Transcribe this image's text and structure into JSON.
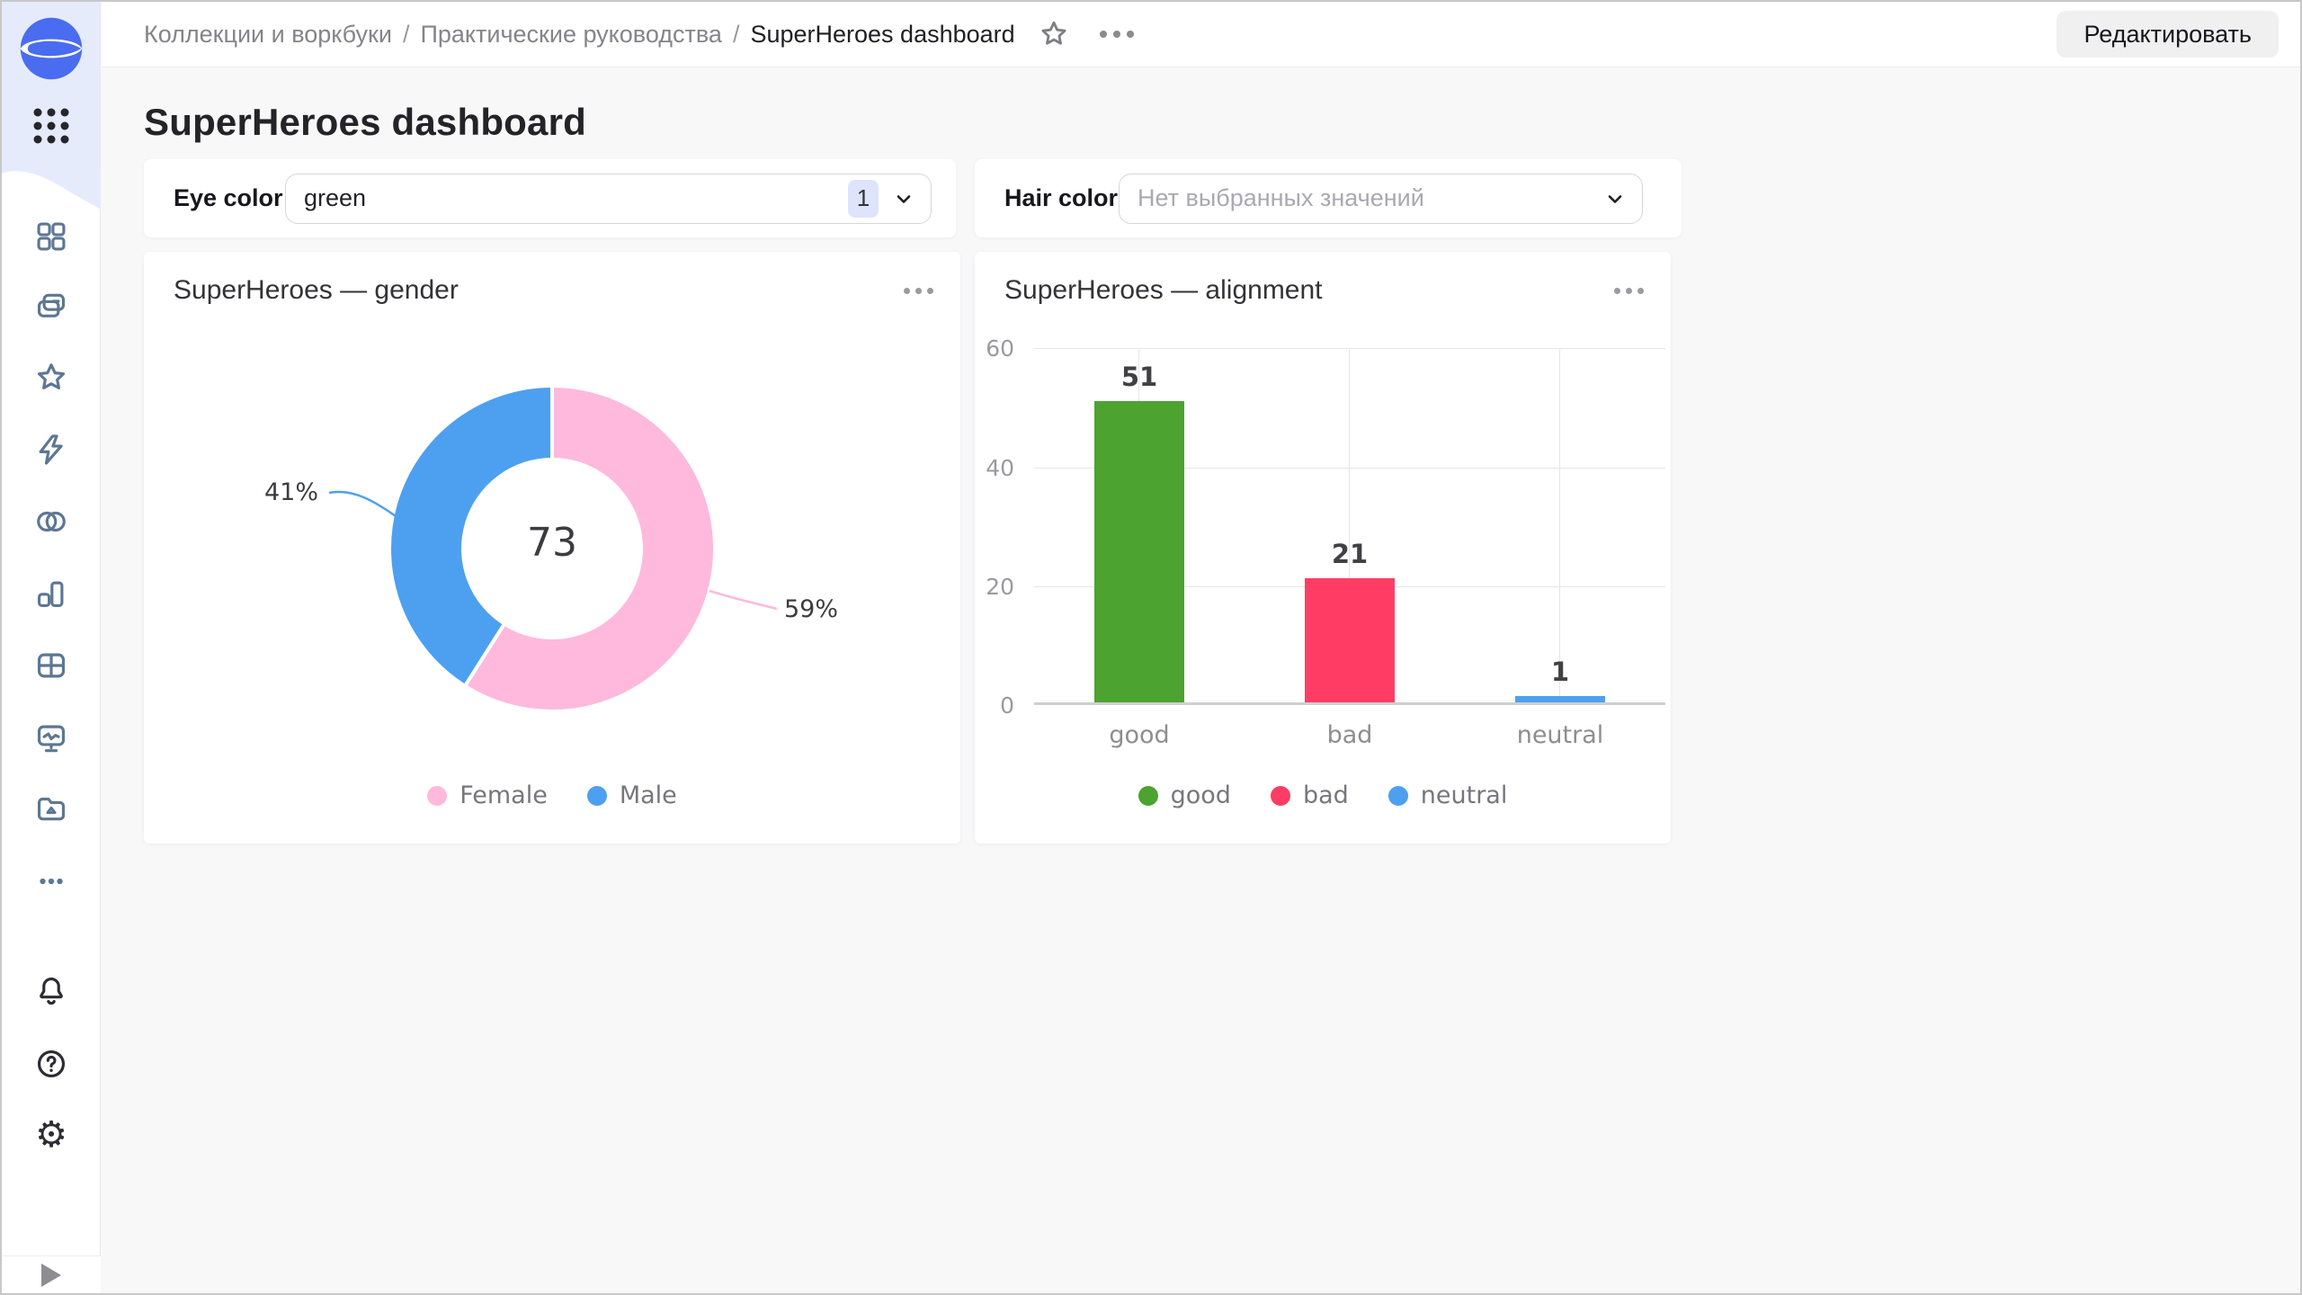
{
  "header": {
    "breadcrumbs": [
      "Коллекции и воркбуки",
      "Практические руководства",
      "SuperHeroes dashboard"
    ],
    "separator": "/",
    "icons": [
      "favorite-star-icon",
      "more-ellipsis-icon"
    ],
    "edit_button": "Редактировать"
  },
  "page": {
    "title": "SuperHeroes dashboard"
  },
  "filters": {
    "eye_color": {
      "label": "Eye color",
      "value": "green",
      "count": "1"
    },
    "hair_color": {
      "label": "Hair color",
      "placeholder": "Нет выбранных значений"
    }
  },
  "sidebar": {
    "logo": "datalens-logo",
    "nav_icons": [
      "apps-grid",
      "dashboard-squares",
      "collections",
      "favorites",
      "editor-bolt",
      "connections",
      "charts",
      "tables",
      "monitoring",
      "storage-folder",
      "more"
    ],
    "footer_icons": [
      "notifications-bell",
      "help-question",
      "settings-gear"
    ],
    "expand_icon": "expand-arrow",
    "settings_glyph": "⚙"
  },
  "colors": {
    "accent_blue": "#4a6cf1",
    "sidebar_tint": "#e6ebfc",
    "badge_bg": "#dde4fb"
  },
  "chart_data": [
    {
      "type": "pie",
      "subtype": "donut",
      "title": "SuperHeroes — gender",
      "series": [
        {
          "name": "Female",
          "value": 59,
          "percent": "59%",
          "color": "#ffb9dc"
        },
        {
          "name": "Male",
          "value": 41,
          "percent": "41%",
          "color": "#4da0ef"
        }
      ],
      "center_total": "73",
      "legend_position": "bottom"
    },
    {
      "type": "bar",
      "title": "SuperHeroes — alignment",
      "categories": [
        "good",
        "bad",
        "neutral"
      ],
      "values": [
        51,
        21,
        1
      ],
      "colors": [
        "#4da32f",
        "#ff3d64",
        "#4da0ef"
      ],
      "ylim": [
        0,
        60
      ],
      "yticks": [
        60,
        40,
        20,
        0
      ],
      "legend": [
        "good",
        "bad",
        "neutral"
      ],
      "grid": true,
      "legend_position": "bottom"
    }
  ]
}
